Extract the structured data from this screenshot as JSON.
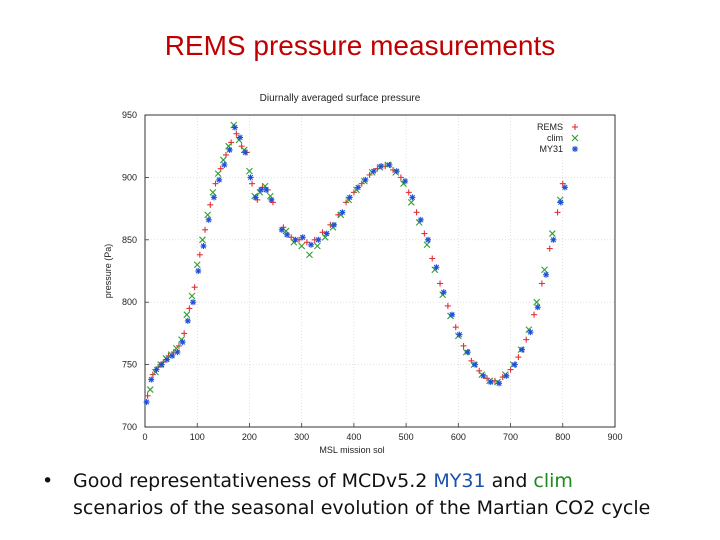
{
  "slide": {
    "title": "REMS pressure measurements",
    "bullet": {
      "marker": "•",
      "part1": "Good representativeness of MCDv5.2 ",
      "my31": "MY31",
      "part2": " and ",
      "clim": "clim",
      "line2": "scenarios of the seasonal evolution of the Martian CO2 cycle"
    }
  },
  "chart_data": {
    "type": "scatter",
    "title": "Diurnally averaged surface pressure",
    "xlabel": "MSL mission sol",
    "ylabel": "pressure (Pa)",
    "xlim": [
      0,
      900
    ],
    "ylim": [
      700,
      950
    ],
    "xticks": [
      0,
      100,
      200,
      300,
      400,
      500,
      600,
      700,
      800,
      900
    ],
    "yticks": [
      700,
      750,
      800,
      850,
      900,
      950
    ],
    "legend_position": "top-right",
    "grid": true,
    "series": [
      {
        "name": "REMS",
        "marker": "+",
        "color": "#e0303a",
        "points": [
          [
            5,
            725
          ],
          [
            15,
            742
          ],
          [
            25,
            748
          ],
          [
            35,
            752
          ],
          [
            45,
            757
          ],
          [
            55,
            760
          ],
          [
            65,
            765
          ],
          [
            75,
            775
          ],
          [
            85,
            795
          ],
          [
            95,
            812
          ],
          [
            105,
            838
          ],
          [
            115,
            858
          ],
          [
            125,
            878
          ],
          [
            135,
            895
          ],
          [
            145,
            907
          ],
          [
            155,
            918
          ],
          [
            165,
            928
          ],
          [
            175,
            935
          ],
          [
            185,
            925
          ],
          [
            195,
            920
          ],
          [
            205,
            895
          ],
          [
            215,
            882
          ],
          [
            225,
            892
          ],
          [
            235,
            890
          ],
          [
            245,
            880
          ],
          [
            265,
            860
          ],
          [
            280,
            852
          ],
          [
            295,
            850
          ],
          [
            310,
            848
          ],
          [
            325,
            850
          ],
          [
            340,
            856
          ],
          [
            355,
            862
          ],
          [
            370,
            870
          ],
          [
            385,
            880
          ],
          [
            400,
            888
          ],
          [
            415,
            895
          ],
          [
            430,
            902
          ],
          [
            445,
            907
          ],
          [
            460,
            909
          ],
          [
            475,
            906
          ],
          [
            490,
            900
          ],
          [
            505,
            888
          ],
          [
            520,
            872
          ],
          [
            535,
            855
          ],
          [
            550,
            835
          ],
          [
            565,
            815
          ],
          [
            580,
            797
          ],
          [
            595,
            780
          ],
          [
            610,
            765
          ],
          [
            625,
            753
          ],
          [
            640,
            745
          ],
          [
            655,
            739
          ],
          [
            670,
            737
          ],
          [
            685,
            740
          ],
          [
            700,
            746
          ],
          [
            715,
            756
          ],
          [
            730,
            770
          ],
          [
            745,
            790
          ],
          [
            760,
            815
          ],
          [
            775,
            843
          ],
          [
            790,
            872
          ],
          [
            800,
            895
          ]
        ]
      },
      {
        "name": "clim",
        "marker": "×",
        "color": "#2ea02e",
        "points": [
          [
            10,
            730
          ],
          [
            20,
            744
          ],
          [
            30,
            750
          ],
          [
            40,
            755
          ],
          [
            50,
            758
          ],
          [
            60,
            763
          ],
          [
            70,
            770
          ],
          [
            80,
            790
          ],
          [
            90,
            805
          ],
          [
            100,
            830
          ],
          [
            110,
            850
          ],
          [
            120,
            870
          ],
          [
            130,
            888
          ],
          [
            140,
            903
          ],
          [
            150,
            914
          ],
          [
            160,
            925
          ],
          [
            170,
            942
          ],
          [
            180,
            930
          ],
          [
            190,
            922
          ],
          [
            200,
            905
          ],
          [
            210,
            885
          ],
          [
            220,
            888
          ],
          [
            230,
            893
          ],
          [
            240,
            885
          ],
          [
            270,
            857
          ],
          [
            285,
            848
          ],
          [
            300,
            845
          ],
          [
            315,
            838
          ],
          [
            330,
            845
          ],
          [
            345,
            852
          ],
          [
            360,
            860
          ],
          [
            375,
            870
          ],
          [
            390,
            882
          ],
          [
            405,
            890
          ],
          [
            420,
            897
          ],
          [
            435,
            904
          ],
          [
            450,
            908
          ],
          [
            465,
            910
          ],
          [
            480,
            904
          ],
          [
            495,
            895
          ],
          [
            510,
            880
          ],
          [
            525,
            864
          ],
          [
            540,
            846
          ],
          [
            555,
            826
          ],
          [
            570,
            806
          ],
          [
            585,
            789
          ],
          [
            600,
            773
          ],
          [
            615,
            760
          ],
          [
            630,
            750
          ],
          [
            645,
            742
          ],
          [
            660,
            737
          ],
          [
            675,
            736
          ],
          [
            690,
            742
          ],
          [
            705,
            750
          ],
          [
            720,
            762
          ],
          [
            735,
            778
          ],
          [
            750,
            800
          ],
          [
            765,
            826
          ],
          [
            780,
            855
          ],
          [
            795,
            882
          ]
        ]
      },
      {
        "name": "MY31",
        "marker": "*",
        "color": "#1f4fd8",
        "points": [
          [
            3,
            720
          ],
          [
            12,
            738
          ],
          [
            22,
            746
          ],
          [
            32,
            750
          ],
          [
            42,
            754
          ],
          [
            52,
            757
          ],
          [
            62,
            760
          ],
          [
            72,
            768
          ],
          [
            82,
            785
          ],
          [
            92,
            800
          ],
          [
            102,
            825
          ],
          [
            112,
            845
          ],
          [
            122,
            866
          ],
          [
            132,
            884
          ],
          [
            142,
            898
          ],
          [
            152,
            910
          ],
          [
            162,
            922
          ],
          [
            172,
            940
          ],
          [
            182,
            932
          ],
          [
            192,
            920
          ],
          [
            202,
            900
          ],
          [
            212,
            884
          ],
          [
            222,
            890
          ],
          [
            232,
            890
          ],
          [
            242,
            882
          ],
          [
            262,
            858
          ],
          [
            272,
            854
          ],
          [
            288,
            850
          ],
          [
            302,
            852
          ],
          [
            318,
            846
          ],
          [
            332,
            850
          ],
          [
            348,
            855
          ],
          [
            362,
            862
          ],
          [
            378,
            872
          ],
          [
            392,
            884
          ],
          [
            408,
            892
          ],
          [
            422,
            898
          ],
          [
            438,
            905
          ],
          [
            452,
            909
          ],
          [
            468,
            910
          ],
          [
            482,
            905
          ],
          [
            498,
            897
          ],
          [
            512,
            884
          ],
          [
            528,
            866
          ],
          [
            542,
            850
          ],
          [
            558,
            828
          ],
          [
            572,
            808
          ],
          [
            588,
            790
          ],
          [
            602,
            774
          ],
          [
            618,
            760
          ],
          [
            632,
            750
          ],
          [
            648,
            741
          ],
          [
            662,
            736
          ],
          [
            678,
            735
          ],
          [
            692,
            741
          ],
          [
            708,
            750
          ],
          [
            722,
            762
          ],
          [
            738,
            776
          ],
          [
            752,
            796
          ],
          [
            768,
            822
          ],
          [
            782,
            850
          ],
          [
            796,
            880
          ],
          [
            804,
            892
          ]
        ]
      }
    ]
  }
}
